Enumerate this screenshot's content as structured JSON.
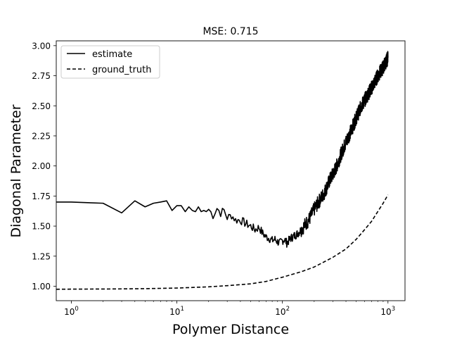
{
  "chart_data": {
    "type": "line",
    "title": "MSE: 0.715",
    "xlabel": "Polymer Distance",
    "ylabel": "Diagonal Parameter",
    "xscale": "log",
    "xlim": [
      0.72,
      1450
    ],
    "ylim": [
      0.88,
      3.04
    ],
    "x_ticks": [
      {
        "value": 1,
        "base": "10",
        "exp": "0"
      },
      {
        "value": 10,
        "base": "10",
        "exp": "1"
      },
      {
        "value": 100,
        "base": "10",
        "exp": "2"
      },
      {
        "value": 1000,
        "base": "10",
        "exp": "3"
      }
    ],
    "y_ticks": [
      {
        "value": 1.0,
        "label": "1.00"
      },
      {
        "value": 1.25,
        "label": "1.25"
      },
      {
        "value": 1.5,
        "label": "1.50"
      },
      {
        "value": 1.75,
        "label": "1.75"
      },
      {
        "value": 2.0,
        "label": "2.00"
      },
      {
        "value": 2.25,
        "label": "2.25"
      },
      {
        "value": 2.5,
        "label": "2.50"
      },
      {
        "value": 2.75,
        "label": "2.75"
      },
      {
        "value": 3.0,
        "label": "3.00"
      }
    ],
    "legend": {
      "placement": "upper-left",
      "entries": [
        "estimate",
        "ground_truth"
      ]
    },
    "series": [
      {
        "name": "estimate",
        "style": "solid",
        "color": "#000000",
        "x": [
          0,
          1,
          2,
          3,
          4,
          5,
          6,
          7,
          8,
          9,
          10,
          11,
          12,
          13,
          14,
          15,
          16,
          17,
          18,
          19,
          20,
          22,
          24,
          26,
          28,
          30,
          33,
          36,
          40,
          45,
          50,
          55,
          60,
          65,
          70,
          75,
          80,
          85,
          90,
          95,
          100,
          105,
          110,
          120,
          130,
          140,
          150,
          160,
          180,
          200,
          220,
          250,
          280,
          320,
          360,
          400,
          450,
          500,
          560,
          630,
          700,
          800,
          900,
          1000
        ],
        "values": [
          1.7,
          1.7,
          1.69,
          1.61,
          1.71,
          1.66,
          1.69,
          1.7,
          1.71,
          1.63,
          1.67,
          1.67,
          1.62,
          1.66,
          1.63,
          1.62,
          1.66,
          1.62,
          1.63,
          1.62,
          1.64,
          1.59,
          1.65,
          1.61,
          1.63,
          1.57,
          1.59,
          1.55,
          1.55,
          1.52,
          1.5,
          1.47,
          1.49,
          1.44,
          1.41,
          1.4,
          1.38,
          1.39,
          1.37,
          1.36,
          1.38,
          1.39,
          1.36,
          1.4,
          1.42,
          1.44,
          1.47,
          1.5,
          1.56,
          1.64,
          1.7,
          1.78,
          1.88,
          1.98,
          2.1,
          2.2,
          2.3,
          2.4,
          2.5,
          2.58,
          2.65,
          2.75,
          2.82,
          2.9
        ],
        "noise_amplitude": 0.06
      },
      {
        "name": "ground_truth",
        "style": "dashed",
        "color": "#000000",
        "x": [
          0,
          1,
          2,
          3,
          5,
          10,
          20,
          30,
          50,
          70,
          100,
          150,
          200,
          300,
          400,
          500,
          600,
          700,
          800,
          900,
          1000
        ],
        "values": [
          0.975,
          0.976,
          0.977,
          0.978,
          0.98,
          0.985,
          0.995,
          1.005,
          1.02,
          1.04,
          1.075,
          1.12,
          1.16,
          1.24,
          1.31,
          1.39,
          1.47,
          1.54,
          1.62,
          1.69,
          1.76
        ]
      }
    ]
  }
}
